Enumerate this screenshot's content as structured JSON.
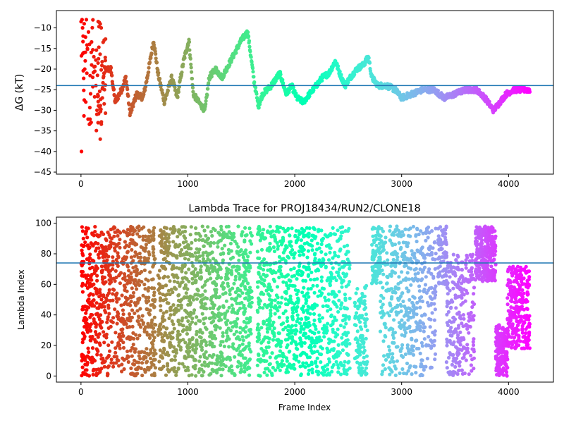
{
  "figure": {
    "colormap": "rainbow",
    "hline_color": "#1f77b4"
  },
  "chart_data": [
    {
      "type": "scatter",
      "title": "",
      "xlabel": "",
      "ylabel": "ΔG (kT)",
      "xlim": [
        -230,
        4420
      ],
      "ylim": [
        -45.5,
        -5.8
      ],
      "xticks": [
        0,
        1000,
        2000,
        3000,
        4000
      ],
      "yticks": [
        -45,
        -40,
        -35,
        -30,
        -25,
        -20,
        -15,
        -10
      ],
      "hline": -24,
      "grid": false,
      "legend": "none",
      "color_by": "frame index (reversed rainbow)",
      "trend": [
        [
          0,
          -14
        ],
        [
          30,
          -10
        ],
        [
          60,
          -16
        ],
        [
          100,
          -12
        ],
        [
          140,
          -22
        ],
        [
          180,
          -30
        ],
        [
          220,
          -20
        ],
        [
          280,
          -20
        ],
        [
          320,
          -28
        ],
        [
          380,
          -25
        ],
        [
          420,
          -22
        ],
        [
          460,
          -31
        ],
        [
          520,
          -26
        ],
        [
          580,
          -27
        ],
        [
          620,
          -22
        ],
        [
          680,
          -13
        ],
        [
          720,
          -21
        ],
        [
          780,
          -28
        ],
        [
          850,
          -22
        ],
        [
          900,
          -27
        ],
        [
          960,
          -18
        ],
        [
          1010,
          -13
        ],
        [
          1050,
          -26
        ],
        [
          1100,
          -28
        ],
        [
          1160,
          -30
        ],
        [
          1200,
          -22
        ],
        [
          1260,
          -20
        ],
        [
          1320,
          -22
        ],
        [
          1380,
          -19
        ],
        [
          1440,
          -16
        ],
        [
          1500,
          -13
        ],
        [
          1560,
          -11
        ],
        [
          1620,
          -23
        ],
        [
          1660,
          -29
        ],
        [
          1700,
          -26
        ],
        [
          1780,
          -24
        ],
        [
          1860,
          -21
        ],
        [
          1920,
          -26
        ],
        [
          1970,
          -24
        ],
        [
          2020,
          -27
        ],
        [
          2080,
          -28
        ],
        [
          2140,
          -26
        ],
        [
          2200,
          -24
        ],
        [
          2260,
          -22
        ],
        [
          2320,
          -21
        ],
        [
          2380,
          -18
        ],
        [
          2420,
          -21
        ],
        [
          2470,
          -24
        ],
        [
          2520,
          -22
        ],
        [
          2580,
          -20
        ],
        [
          2640,
          -19
        ],
        [
          2690,
          -17
        ],
        [
          2720,
          -22
        ],
        [
          2780,
          -24
        ],
        [
          2860,
          -24
        ],
        [
          2940,
          -25
        ],
        [
          3000,
          -27
        ],
        [
          3100,
          -26
        ],
        [
          3200,
          -25
        ],
        [
          3300,
          -25
        ],
        [
          3400,
          -27
        ],
        [
          3500,
          -26
        ],
        [
          3600,
          -25
        ],
        [
          3700,
          -25
        ],
        [
          3780,
          -27
        ],
        [
          3860,
          -30
        ],
        [
          3920,
          -28
        ],
        [
          3980,
          -26
        ],
        [
          4050,
          -25
        ],
        [
          4200,
          -25
        ]
      ],
      "noise": 0.7,
      "early_scatter": [
        [
          10,
          -8
        ],
        [
          15,
          -10
        ],
        [
          20,
          -12
        ],
        [
          25,
          -16
        ],
        [
          30,
          -9
        ],
        [
          35,
          -20
        ],
        [
          40,
          -18
        ],
        [
          45,
          -28
        ],
        [
          50,
          -8
        ],
        [
          55,
          -21
        ],
        [
          60,
          -15
        ],
        [
          70,
          -11
        ],
        [
          80,
          -14
        ],
        [
          90,
          -26
        ],
        [
          100,
          -19
        ],
        [
          110,
          -22
        ],
        [
          120,
          -17
        ],
        [
          140,
          -24
        ],
        [
          150,
          -30
        ],
        [
          160,
          -33
        ],
        [
          170,
          -29
        ],
        [
          180,
          -37
        ],
        [
          200,
          -27
        ],
        [
          220,
          -25
        ],
        [
          5,
          -40
        ]
      ]
    },
    {
      "type": "scatter",
      "title": "Lambda Trace for PROJ18434/RUN2/CLONE18",
      "xlabel": "Frame Index",
      "ylabel": "Lambda Index",
      "xlim": [
        -230,
        4420
      ],
      "ylim": [
        -4,
        104
      ],
      "xticks": [
        0,
        1000,
        2000,
        3000,
        4000
      ],
      "yticks": [
        0,
        20,
        40,
        60,
        80,
        100
      ],
      "hline": 74,
      "grid": false,
      "legend": "none",
      "color_by": "frame index (reversed rainbow)",
      "segments": [
        {
          "x_start": 0,
          "x_end": 60,
          "y_min": 0,
          "y_max": 98,
          "count": 80
        },
        {
          "x_start": 60,
          "x_end": 220,
          "y_min": 0,
          "y_max": 98,
          "count": 200
        },
        {
          "x_start": 220,
          "x_end": 700,
          "y_min": 0,
          "y_max": 98,
          "count": 520
        },
        {
          "x_start": 720,
          "x_end": 1000,
          "y_min": 0,
          "y_max": 98,
          "count": 320
        },
        {
          "x_start": 1000,
          "x_end": 1120,
          "y_min": 0,
          "y_max": 98,
          "count": 130
        },
        {
          "x_start": 1120,
          "x_end": 1600,
          "y_min": 0,
          "y_max": 98,
          "count": 520
        },
        {
          "x_start": 1650,
          "x_end": 2000,
          "y_min": 0,
          "y_max": 98,
          "count": 380
        },
        {
          "x_start": 2000,
          "x_end": 2520,
          "y_min": 0,
          "y_max": 98,
          "count": 520
        },
        {
          "x_start": 2560,
          "x_end": 2680,
          "y_min": 0,
          "y_max": 60,
          "count": 110
        },
        {
          "x_start": 2720,
          "x_end": 2800,
          "y_min": 60,
          "y_max": 98,
          "count": 90
        },
        {
          "x_start": 2800,
          "x_end": 3320,
          "y_min": 0,
          "y_max": 98,
          "count": 480
        },
        {
          "x_start": 3340,
          "x_end": 3420,
          "y_min": 60,
          "y_max": 98,
          "count": 70
        },
        {
          "x_start": 3420,
          "x_end": 3680,
          "y_min": 0,
          "y_max": 80,
          "count": 260
        },
        {
          "x_start": 3690,
          "x_end": 3880,
          "y_min": 62,
          "y_max": 98,
          "count": 300
        },
        {
          "x_start": 3880,
          "x_end": 3990,
          "y_min": 0,
          "y_max": 34,
          "count": 200
        },
        {
          "x_start": 3990,
          "x_end": 4200,
          "y_min": 18,
          "y_max": 72,
          "count": 280
        }
      ]
    }
  ]
}
